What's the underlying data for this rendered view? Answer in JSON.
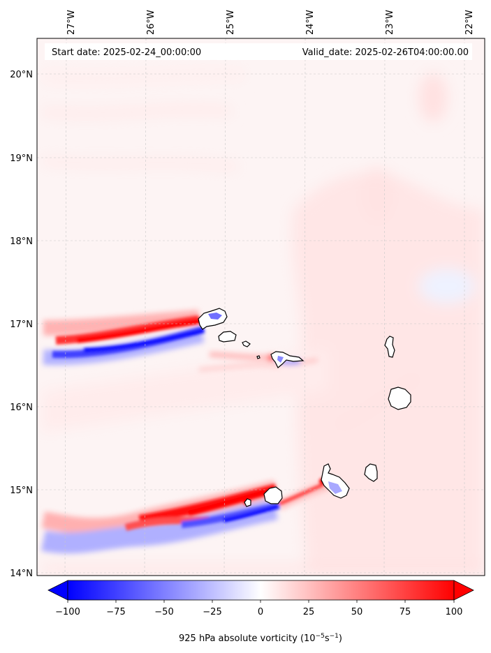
{
  "header": {
    "start_date": "Start date: 2025-02-24_00:00:00",
    "valid_date": "Valid_date: 2025-02-26T04:00:00.00"
  },
  "axes": {
    "lon_labels": [
      "27°W",
      "26°W",
      "25°W",
      "24°W",
      "23°W",
      "22°W"
    ],
    "lat_labels": [
      "20°N",
      "19°N",
      "18°N",
      "17°N",
      "16°N",
      "15°N",
      "14°N"
    ]
  },
  "colorbar": {
    "ticks": [
      "−100",
      "−75",
      "−50",
      "−25",
      "0",
      "25",
      "50",
      "75",
      "100"
    ],
    "label_prefix": "925 hPa absolute vorticity (10",
    "label_exp1": "−5",
    "label_mid": "s",
    "label_exp2": "−1",
    "label_suffix": ")",
    "neg_color": "#0000ff",
    "zero_color": "#ffffff",
    "pos_color": "#ff0000"
  },
  "map_features": {
    "islands": [
      "island-santo-antao",
      "island-sao-vicente",
      "island-santa-luzia",
      "island-sao-nicolau",
      "island-sal",
      "island-boa-vista",
      "island-santiago",
      "island-fogo",
      "island-brava",
      "island-maio"
    ]
  }
}
